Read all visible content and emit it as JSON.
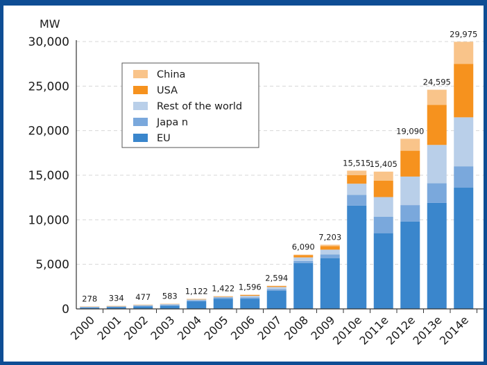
{
  "chart_data": {
    "type": "bar",
    "stacked": true,
    "ylabel": "MW",
    "ylim": [
      0,
      30000
    ],
    "yticks": [
      0,
      5000,
      10000,
      15000,
      20000,
      25000,
      30000
    ],
    "ytick_labels": [
      "0",
      "5,000",
      "10,000",
      "15,000",
      "20,000",
      "25,000",
      "30,000"
    ],
    "grid": "horizontal dashed",
    "legend_position": "top-left",
    "categories": [
      "2000",
      "2001",
      "2002",
      "2003",
      "2004",
      "2005",
      "2006",
      "2007",
      "2008",
      "2009",
      "2010e",
      "2011e",
      "2012e",
      "2013e",
      "2014e"
    ],
    "totals": [
      278,
      334,
      477,
      583,
      1122,
      1422,
      1596,
      2594,
      6090,
      7203,
      15515,
      15405,
      19090,
      24595,
      29975
    ],
    "total_labels": [
      "278",
      "334",
      "477",
      "583",
      "1,122",
      "1,422",
      "1,596",
      "2,594",
      "6,090",
      "7,203",
      "15,515",
      "15,405",
      "19,090",
      "24,595",
      "29,975"
    ],
    "series": [
      {
        "name": "EU",
        "color": "#3a86cc",
        "values": [
          140,
          200,
          280,
          360,
          850,
          1150,
          1150,
          2050,
          5150,
          5700,
          11600,
          8500,
          9800,
          11900,
          13600
        ]
      },
      {
        "name": "Japa n",
        "color": "#7aa8dc",
        "values": [
          60,
          60,
          90,
          90,
          110,
          130,
          130,
          160,
          230,
          400,
          1200,
          1850,
          1850,
          2200,
          2400
        ]
      },
      {
        "name": "Rest of the world",
        "color": "#b9cfe9",
        "values": [
          50,
          50,
          80,
          100,
          100,
          70,
          190,
          250,
          400,
          550,
          1250,
          2200,
          3200,
          4300,
          5500
        ]
      },
      {
        "name": "USA",
        "color": "#f6921e",
        "values": [
          20,
          16,
          20,
          24,
          52,
          62,
          96,
          104,
          260,
          400,
          950,
          1850,
          2900,
          4500,
          6000
        ]
      },
      {
        "name": "China",
        "color": "#f9c48a",
        "values": [
          8,
          8,
          7,
          9,
          10,
          10,
          30,
          30,
          50,
          153,
          515,
          1005,
          1340,
          1695,
          2475
        ]
      }
    ],
    "legend_order": [
      "China",
      "USA",
      "Rest of the world",
      "Japa n",
      "EU"
    ]
  }
}
